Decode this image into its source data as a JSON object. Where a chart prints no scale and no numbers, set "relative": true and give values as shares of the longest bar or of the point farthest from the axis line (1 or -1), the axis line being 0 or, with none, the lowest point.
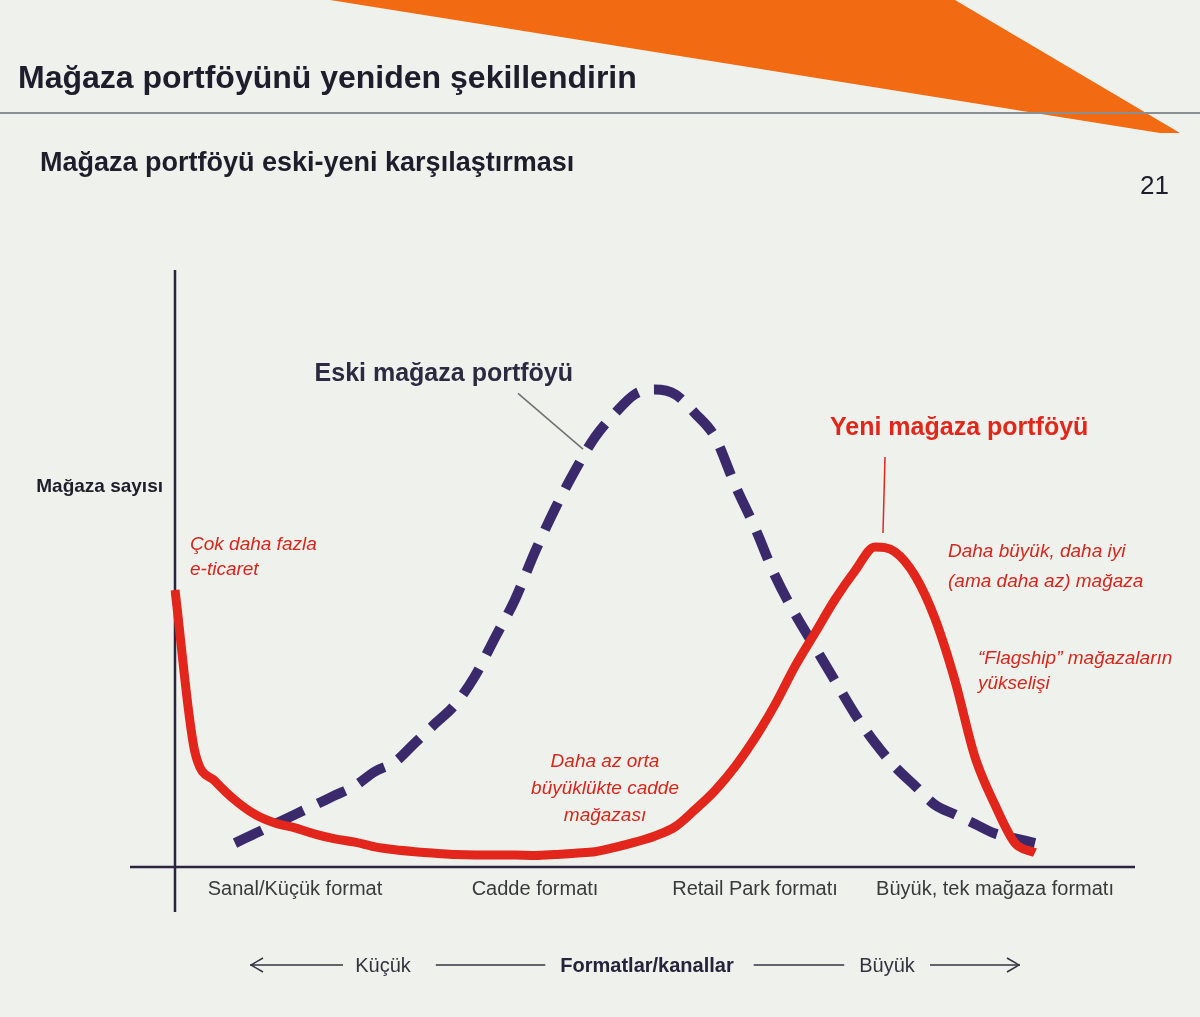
{
  "chart_data": {
    "type": "line",
    "title": "Mağaza portföyünü yeniden şekillendirin",
    "subtitle": "Mağaza portföyü eski-yeni karşılaştırması",
    "xlabel": "Formatlar/kanallar",
    "ylabel": "Mağaza sayısı",
    "relative": true,
    "legend": false,
    "marker": "none",
    "tick_labels": "x",
    "categories": [
      null,
      null,
      null,
      null,
      null,
      null,
      "Sanal/Küçük format",
      null,
      null,
      null,
      null,
      null,
      null,
      null,
      null,
      null,
      null,
      null,
      "Cadde formatı",
      null,
      null,
      null,
      null,
      null,
      null,
      null,
      null,
      null,
      null,
      "Retail Park formatı",
      null,
      null,
      null,
      null,
      null,
      null,
      null,
      null,
      null,
      null,
      null,
      "Büyük, tek mağaza formatı",
      null,
      null,
      null,
      null,
      null,
      null,
      null
    ],
    "series": [
      {
        "name": "Eski mağaza portföyü",
        "color": "#3a2a6c",
        "line_style": "dashed",
        "values": [
          null,
          null,
          null,
          0.05,
          0.07,
          0.09,
          0.11,
          0.13,
          0.15,
          0.17,
          0.2,
          0.22,
          0.26,
          0.3,
          0.34,
          0.4,
          0.48,
          0.56,
          0.66,
          0.75,
          0.83,
          0.9,
          0.95,
          0.99,
          1,
          0.99,
          0.95,
          0.9,
          0.8,
          0.71,
          0.61,
          0.53,
          0.46,
          0.39,
          0.32,
          0.26,
          0.21,
          0.17,
          0.13,
          0.11,
          0.09,
          0.07,
          0.06,
          0.05,
          null,
          null,
          null,
          null,
          null
        ]
      },
      {
        "name": "Yeni mağaza portföyü",
        "color": "#e3261b",
        "line_style": "solid",
        "values": [
          0.58,
          0.24,
          0.18,
          0.14,
          0.11,
          0.092,
          0.082,
          0.069,
          0.059,
          0.052,
          0.042,
          0.036,
          0.032,
          0.029,
          0.026,
          0.025,
          0.025,
          0.025,
          0.024,
          0.026,
          0.029,
          0.032,
          0.041,
          0.052,
          0.065,
          0.084,
          0.12,
          0.16,
          0.21,
          0.27,
          0.34,
          0.42,
          0.49,
          0.56,
          0.62,
          0.67,
          0.66,
          0.61,
          0.52,
          0.39,
          0.23,
          0.13,
          0.05,
          0.03,
          null,
          null,
          null,
          null,
          null
        ]
      }
    ],
    "annotations": [
      "21",
      "Çok daha fazla e-ticaret",
      "Daha az orta büyüklükte cadde mağazası",
      "Daha büyük, daha iyi (ama daha az) mağaza",
      "“Flagship” mağazaların yükselişi",
      "Küçük",
      "Büyük"
    ]
  }
}
